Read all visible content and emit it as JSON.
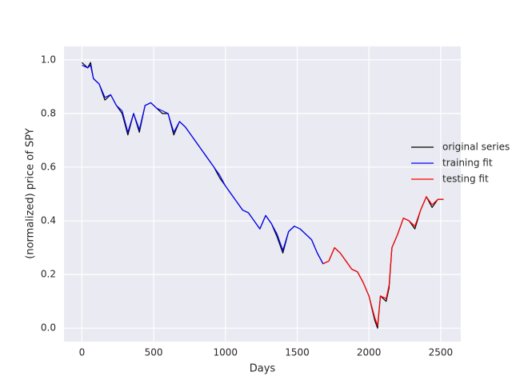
{
  "chart_data": {
    "type": "line",
    "xlabel": "Days",
    "ylabel": "(normalized) price of SPY",
    "x": [
      0,
      40,
      60,
      80,
      120,
      160,
      200,
      240,
      280,
      320,
      360,
      400,
      440,
      480,
      520,
      560,
      600,
      640,
      680,
      720,
      760,
      800,
      840,
      880,
      920,
      960,
      1000,
      1040,
      1080,
      1120,
      1160,
      1200,
      1240,
      1280,
      1320,
      1360,
      1400,
      1440,
      1480,
      1520,
      1560,
      1600,
      1640,
      1680,
      1720,
      1760,
      1800,
      1840,
      1880,
      1920,
      1960,
      2000,
      2040,
      2060,
      2080,
      2120,
      2140,
      2160,
      2200,
      2240,
      2280,
      2320,
      2360,
      2400,
      2440,
      2480,
      2520
    ],
    "series": [
      {
        "name": "original series",
        "color": "#000000",
        "values": [
          0.99,
          0.97,
          0.99,
          0.93,
          0.91,
          0.85,
          0.87,
          0.83,
          0.8,
          0.72,
          0.8,
          0.73,
          0.83,
          0.84,
          0.82,
          0.8,
          0.8,
          0.72,
          0.77,
          0.75,
          0.72,
          0.69,
          0.66,
          0.63,
          0.6,
          0.56,
          0.53,
          0.5,
          0.47,
          0.44,
          0.43,
          0.4,
          0.37,
          0.42,
          0.39,
          0.34,
          0.28,
          0.36,
          0.38,
          0.37,
          0.35,
          0.33,
          0.28,
          0.24,
          0.25,
          0.3,
          0.28,
          0.25,
          0.22,
          0.21,
          0.17,
          0.12,
          0.03,
          0.0,
          0.12,
          0.1,
          0.15,
          0.3,
          0.35,
          0.41,
          0.4,
          0.37,
          0.44,
          0.49,
          0.45,
          0.48,
          0.48
        ]
      },
      {
        "name": "training fit",
        "color": "#0000ff",
        "values": [
          0.98,
          0.97,
          0.98,
          0.93,
          0.91,
          0.86,
          0.87,
          0.83,
          0.81,
          0.73,
          0.8,
          0.74,
          0.83,
          0.84,
          0.82,
          0.81,
          0.8,
          0.73,
          0.77,
          0.75,
          0.72,
          0.69,
          0.66,
          0.63,
          0.6,
          0.57,
          0.53,
          0.5,
          0.47,
          0.44,
          0.43,
          0.4,
          0.37,
          0.42,
          0.39,
          0.35,
          0.29,
          0.36,
          0.38,
          0.37,
          0.35,
          0.33,
          0.28,
          0.24,
          null,
          null,
          null,
          null,
          null,
          null,
          null,
          null,
          null,
          null,
          null,
          null,
          null,
          null,
          null,
          null,
          null,
          null,
          null,
          null,
          null,
          null,
          null
        ]
      },
      {
        "name": "testing fit",
        "color": "#ff0000",
        "values": [
          null,
          null,
          null,
          null,
          null,
          null,
          null,
          null,
          null,
          null,
          null,
          null,
          null,
          null,
          null,
          null,
          null,
          null,
          null,
          null,
          null,
          null,
          null,
          null,
          null,
          null,
          null,
          null,
          null,
          null,
          null,
          null,
          null,
          null,
          null,
          null,
          null,
          null,
          null,
          null,
          null,
          null,
          null,
          0.24,
          0.25,
          0.3,
          0.28,
          0.25,
          0.22,
          0.21,
          0.17,
          0.12,
          0.04,
          0.01,
          0.12,
          0.11,
          0.16,
          0.3,
          0.35,
          0.41,
          0.4,
          0.38,
          0.44,
          0.49,
          0.46,
          0.48,
          0.48
        ]
      }
    ],
    "xlim": [
      -125,
      2640
    ],
    "xticks": [
      0,
      500,
      1000,
      1500,
      2000,
      2500
    ],
    "ylim": [
      -0.05,
      1.05
    ],
    "yticks": [
      {
        "value": 0,
        "label": "0.0"
      },
      0.2,
      0.4,
      0.6,
      0.8,
      {
        "value": 1,
        "label": "1.0"
      }
    ],
    "grid": true,
    "legend": "right"
  }
}
